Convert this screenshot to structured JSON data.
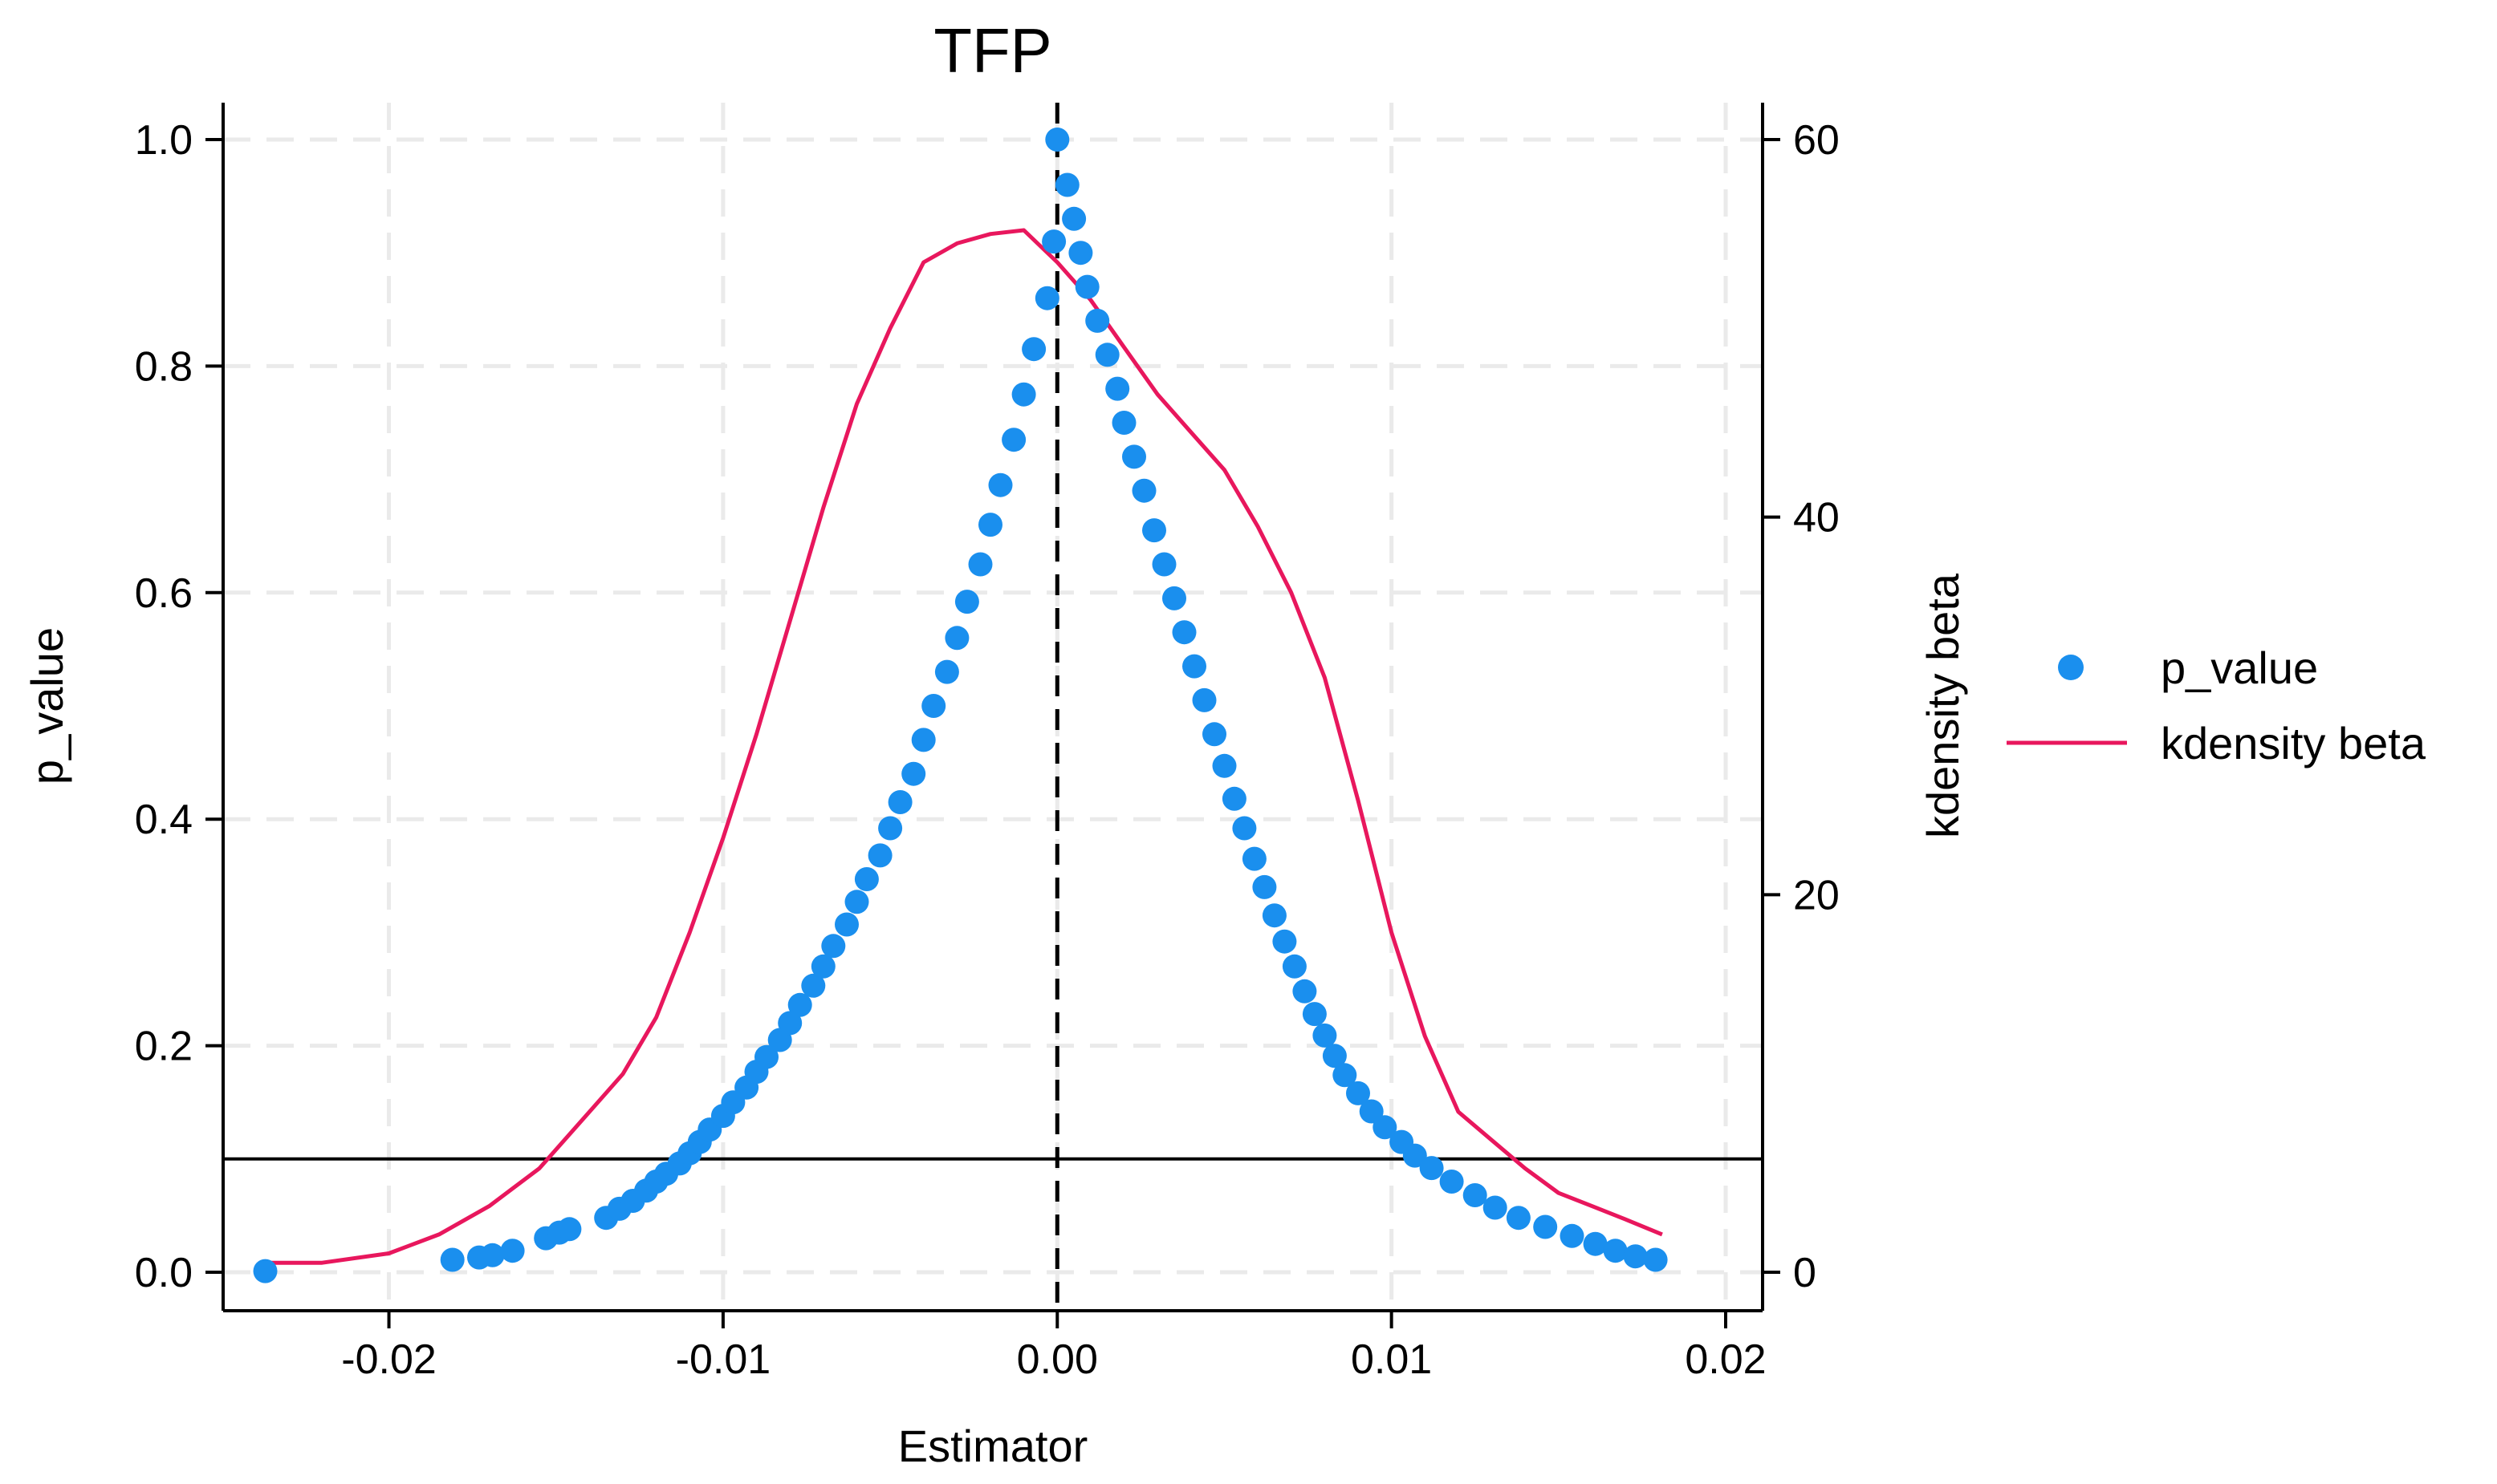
{
  "chart_data": {
    "type": "scatter",
    "title": "TFP",
    "xlabel": "Estimator",
    "ylabel": "p_value",
    "y2label": "kdensity beta",
    "xlim": [
      -0.024,
      0.02
    ],
    "ylim": [
      0,
      1
    ],
    "y2lim": [
      0,
      60
    ],
    "xticks": [
      -0.02,
      -0.01,
      0.0,
      0.01,
      0.02
    ],
    "xtick_labels": [
      "-0.02",
      "-0.01",
      "0.00",
      "0.01",
      "0.02"
    ],
    "yticks": [
      0.0,
      0.2,
      0.4,
      0.6,
      0.8,
      1.0
    ],
    "ytick_labels": [
      "0.0",
      "0.2",
      "0.4",
      "0.6",
      "0.8",
      "1.0"
    ],
    "y2ticks": [
      0,
      20,
      40,
      60
    ],
    "y2tick_labels": [
      "0",
      "20",
      "40",
      "60"
    ],
    "grid": true,
    "reference_lines": {
      "vertical_x": 0.0,
      "horizontal_y": 0.1
    },
    "legend": {
      "placement": "right",
      "entries": [
        "p_value",
        "kdensity beta"
      ]
    },
    "colors": {
      "p_value": "#1a8fee",
      "kdensity": "#e8175d",
      "grid": "#eaeaea",
      "axis": "#000000"
    },
    "series": [
      {
        "name": "p_value",
        "kind": "scatter",
        "axis": "left",
        "points": [
          [
            -0.0237,
            0.001
          ],
          [
            -0.0181,
            0.011
          ],
          [
            -0.0173,
            0.013
          ],
          [
            -0.0169,
            0.015
          ],
          [
            -0.0163,
            0.019
          ],
          [
            -0.0153,
            0.03
          ],
          [
            -0.0149,
            0.035
          ],
          [
            -0.0146,
            0.038
          ],
          [
            -0.0135,
            0.048
          ],
          [
            -0.0131,
            0.056
          ],
          [
            -0.0127,
            0.063
          ],
          [
            -0.0123,
            0.072
          ],
          [
            -0.012,
            0.08
          ],
          [
            -0.0117,
            0.087
          ],
          [
            -0.0113,
            0.096
          ],
          [
            -0.011,
            0.105
          ],
          [
            -0.0107,
            0.115
          ],
          [
            -0.0104,
            0.126
          ],
          [
            -0.01,
            0.138
          ],
          [
            -0.0097,
            0.15
          ],
          [
            -0.0093,
            0.163
          ],
          [
            -0.009,
            0.177
          ],
          [
            -0.0087,
            0.19
          ],
          [
            -0.0083,
            0.205
          ],
          [
            -0.008,
            0.22
          ],
          [
            -0.0077,
            0.236
          ],
          [
            -0.0073,
            0.253
          ],
          [
            -0.007,
            0.27
          ],
          [
            -0.0067,
            0.288
          ],
          [
            -0.0063,
            0.307
          ],
          [
            -0.006,
            0.327
          ],
          [
            -0.0057,
            0.347
          ],
          [
            -0.0053,
            0.368
          ],
          [
            -0.005,
            0.392
          ],
          [
            -0.0047,
            0.415
          ],
          [
            -0.0043,
            0.44
          ],
          [
            -0.004,
            0.47
          ],
          [
            -0.0037,
            0.5
          ],
          [
            -0.0033,
            0.53
          ],
          [
            -0.003,
            0.56
          ],
          [
            -0.0027,
            0.592
          ],
          [
            -0.0023,
            0.625
          ],
          [
            -0.002,
            0.66
          ],
          [
            -0.0017,
            0.695
          ],
          [
            -0.0013,
            0.735
          ],
          [
            -0.001,
            0.775
          ],
          [
            -0.0007,
            0.815
          ],
          [
            -0.0003,
            0.86
          ],
          [
            -0.0001,
            0.91
          ],
          [
            0.0,
            1.0
          ],
          [
            0.0003,
            0.96
          ],
          [
            0.0005,
            0.93
          ],
          [
            0.0007,
            0.9
          ],
          [
            0.0009,
            0.87
          ],
          [
            0.0012,
            0.84
          ],
          [
            0.0015,
            0.81
          ],
          [
            0.0018,
            0.78
          ],
          [
            0.002,
            0.75
          ],
          [
            0.0023,
            0.72
          ],
          [
            0.0026,
            0.69
          ],
          [
            0.0029,
            0.655
          ],
          [
            0.0032,
            0.625
          ],
          [
            0.0035,
            0.595
          ],
          [
            0.0038,
            0.565
          ],
          [
            0.0041,
            0.535
          ],
          [
            0.0044,
            0.505
          ],
          [
            0.0047,
            0.475
          ],
          [
            0.005,
            0.447
          ],
          [
            0.0053,
            0.418
          ],
          [
            0.0056,
            0.392
          ],
          [
            0.0059,
            0.365
          ],
          [
            0.0062,
            0.34
          ],
          [
            0.0065,
            0.315
          ],
          [
            0.0068,
            0.292
          ],
          [
            0.0071,
            0.27
          ],
          [
            0.0074,
            0.248
          ],
          [
            0.0077,
            0.228
          ],
          [
            0.008,
            0.209
          ],
          [
            0.0083,
            0.191
          ],
          [
            0.0086,
            0.174
          ],
          [
            0.009,
            0.158
          ],
          [
            0.0094,
            0.142
          ],
          [
            0.0098,
            0.128
          ],
          [
            0.0103,
            0.115
          ],
          [
            0.0107,
            0.103
          ],
          [
            0.0112,
            0.092
          ],
          [
            0.0118,
            0.08
          ],
          [
            0.0125,
            0.068
          ],
          [
            0.0131,
            0.057
          ],
          [
            0.0138,
            0.048
          ],
          [
            0.0146,
            0.04
          ],
          [
            0.0154,
            0.032
          ],
          [
            0.0161,
            0.025
          ],
          [
            0.0167,
            0.019
          ],
          [
            0.0173,
            0.014
          ],
          [
            0.0179,
            0.011
          ]
        ]
      },
      {
        "name": "kdensity beta",
        "kind": "line",
        "axis": "right",
        "points": [
          [
            -0.0237,
            0.5
          ],
          [
            -0.022,
            0.5
          ],
          [
            -0.02,
            1.0
          ],
          [
            -0.0185,
            2.0
          ],
          [
            -0.017,
            3.5
          ],
          [
            -0.0155,
            5.5
          ],
          [
            -0.014,
            8.5
          ],
          [
            -0.013,
            10.5
          ],
          [
            -0.012,
            13.5
          ],
          [
            -0.011,
            18.0
          ],
          [
            -0.01,
            23.0
          ],
          [
            -0.009,
            28.5
          ],
          [
            -0.008,
            34.5
          ],
          [
            -0.007,
            40.5
          ],
          [
            -0.006,
            46.0
          ],
          [
            -0.005,
            50.0
          ],
          [
            -0.004,
            53.5
          ],
          [
            -0.003,
            54.5
          ],
          [
            -0.002,
            55.0
          ],
          [
            -0.001,
            55.2
          ],
          [
            0.0,
            53.5
          ],
          [
            0.001,
            51.5
          ],
          [
            0.002,
            49.0
          ],
          [
            0.003,
            46.5
          ],
          [
            0.004,
            44.5
          ],
          [
            0.005,
            42.5
          ],
          [
            0.006,
            39.5
          ],
          [
            0.007,
            36.0
          ],
          [
            0.008,
            31.5
          ],
          [
            0.009,
            25.0
          ],
          [
            0.01,
            18.0
          ],
          [
            0.011,
            12.5
          ],
          [
            0.012,
            8.5
          ],
          [
            0.013,
            7.0
          ],
          [
            0.014,
            5.5
          ],
          [
            0.015,
            4.2
          ],
          [
            0.016,
            3.5
          ],
          [
            0.017,
            2.8
          ],
          [
            0.0181,
            2.0
          ]
        ]
      }
    ]
  }
}
